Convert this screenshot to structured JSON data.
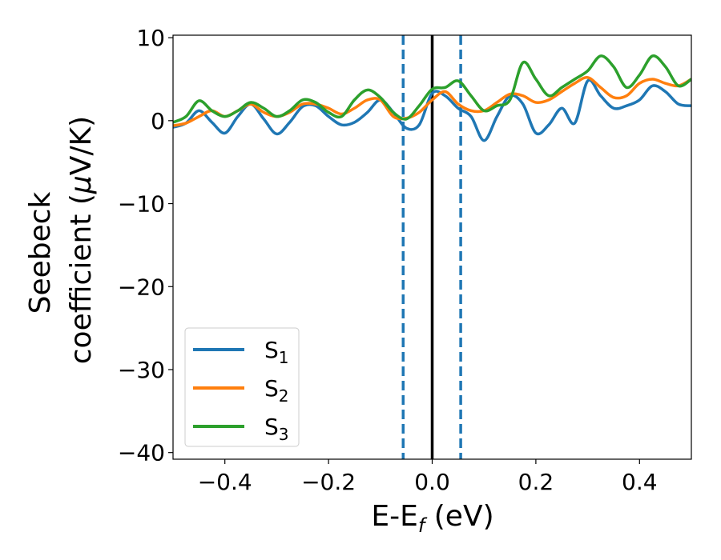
{
  "chart_data": {
    "type": "line",
    "xlabel": "E-E",
    "xlabel_sub": "f",
    "xlabel_unit": " (eV)",
    "ylabel_line1": "Seebeck",
    "ylabel_line2": "coefficient  (",
    "ylabel_mu": "μ",
    "ylabel_unit": "V/K)",
    "xlim": [
      -0.5,
      0.5
    ],
    "ylim": [
      -40.8,
      10.3
    ],
    "xticks": [
      -0.4,
      -0.2,
      0.0,
      0.2,
      0.4
    ],
    "xtick_labels": [
      "−0.4",
      "−0.2",
      "0.0",
      "0.2",
      "0.4"
    ],
    "yticks": [
      -40,
      -30,
      -20,
      -10,
      0,
      10
    ],
    "ytick_labels": [
      "−40",
      "−30",
      "−20",
      "−10",
      "0",
      "10"
    ],
    "vlines": [
      {
        "x": -0.056,
        "style": "dashed",
        "color": "#1f77b4"
      },
      {
        "x": 0.0,
        "style": "solid",
        "color": "#000000"
      },
      {
        "x": 0.055,
        "style": "dashed",
        "color": "#1f77b4"
      }
    ],
    "legend_position": "lower-left",
    "series": [
      {
        "name": "S",
        "sub": "1",
        "color": "#1f77b4",
        "x": [
          -0.5,
          -0.475,
          -0.45,
          -0.425,
          -0.4,
          -0.375,
          -0.35,
          -0.325,
          -0.3,
          -0.275,
          -0.25,
          -0.225,
          -0.2,
          -0.175,
          -0.15,
          -0.125,
          -0.1,
          -0.075,
          -0.05,
          -0.025,
          0.0,
          0.025,
          0.05,
          0.075,
          0.1,
          0.125,
          0.15,
          0.175,
          0.2,
          0.225,
          0.25,
          0.275,
          0.3,
          0.325,
          0.35,
          0.375,
          0.4,
          0.425,
          0.45,
          0.475,
          0.5
        ],
        "y": [
          -0.8,
          -0.3,
          1.2,
          -0.2,
          -1.5,
          0.5,
          2.0,
          0.2,
          -1.6,
          -0.2,
          1.7,
          1.8,
          0.5,
          -0.5,
          -0.2,
          1.0,
          2.5,
          1.0,
          -0.9,
          -0.5,
          3.3,
          3.0,
          1.5,
          0.5,
          -2.4,
          0.5,
          3.0,
          2.0,
          -1.5,
          -0.5,
          1.5,
          -0.3,
          4.8,
          3.0,
          1.5,
          1.8,
          2.5,
          4.2,
          3.5,
          2.0,
          1.8
        ]
      },
      {
        "name": "S",
        "sub": "2",
        "color": "#ff7f0e",
        "x": [
          -0.5,
          -0.475,
          -0.45,
          -0.425,
          -0.4,
          -0.375,
          -0.35,
          -0.325,
          -0.3,
          -0.275,
          -0.25,
          -0.225,
          -0.2,
          -0.175,
          -0.15,
          -0.125,
          -0.1,
          -0.075,
          -0.05,
          -0.025,
          0.0,
          0.025,
          0.05,
          0.075,
          0.1,
          0.125,
          0.15,
          0.175,
          0.2,
          0.225,
          0.25,
          0.275,
          0.3,
          0.325,
          0.35,
          0.375,
          0.4,
          0.425,
          0.45,
          0.475,
          0.5
        ],
        "y": [
          -0.6,
          -0.3,
          0.5,
          1.2,
          0.5,
          1.2,
          2.0,
          1.0,
          0.5,
          1.0,
          2.0,
          2.0,
          1.5,
          0.8,
          1.5,
          2.5,
          2.5,
          0.5,
          0.3,
          1.0,
          2.5,
          3.5,
          2.0,
          1.2,
          1.2,
          2.2,
          3.2,
          3.0,
          2.2,
          2.5,
          3.5,
          4.5,
          5.2,
          4.0,
          2.8,
          3.0,
          4.5,
          5.0,
          4.5,
          4.2,
          5.0
        ]
      },
      {
        "name": "S",
        "sub": "3",
        "color": "#2ca02c",
        "x": [
          -0.5,
          -0.475,
          -0.45,
          -0.425,
          -0.4,
          -0.375,
          -0.35,
          -0.325,
          -0.3,
          -0.275,
          -0.25,
          -0.225,
          -0.2,
          -0.175,
          -0.15,
          -0.125,
          -0.1,
          -0.075,
          -0.05,
          -0.025,
          0.0,
          0.025,
          0.05,
          0.075,
          0.1,
          0.125,
          0.15,
          0.175,
          0.2,
          0.225,
          0.25,
          0.275,
          0.3,
          0.325,
          0.35,
          0.375,
          0.4,
          0.425,
          0.45,
          0.475,
          0.5
        ],
        "y": [
          -0.2,
          0.5,
          2.4,
          1.2,
          0.5,
          1.2,
          2.2,
          1.5,
          0.5,
          1.2,
          2.5,
          2.2,
          1.0,
          0.5,
          2.5,
          3.7,
          2.8,
          1.0,
          0.2,
          1.8,
          3.8,
          4.0,
          4.8,
          3.0,
          1.2,
          1.8,
          2.5,
          7.0,
          5.0,
          3.0,
          4.0,
          5.0,
          6.0,
          7.8,
          6.5,
          4.0,
          5.5,
          7.8,
          6.5,
          4.2,
          5.0
        ]
      }
    ]
  }
}
